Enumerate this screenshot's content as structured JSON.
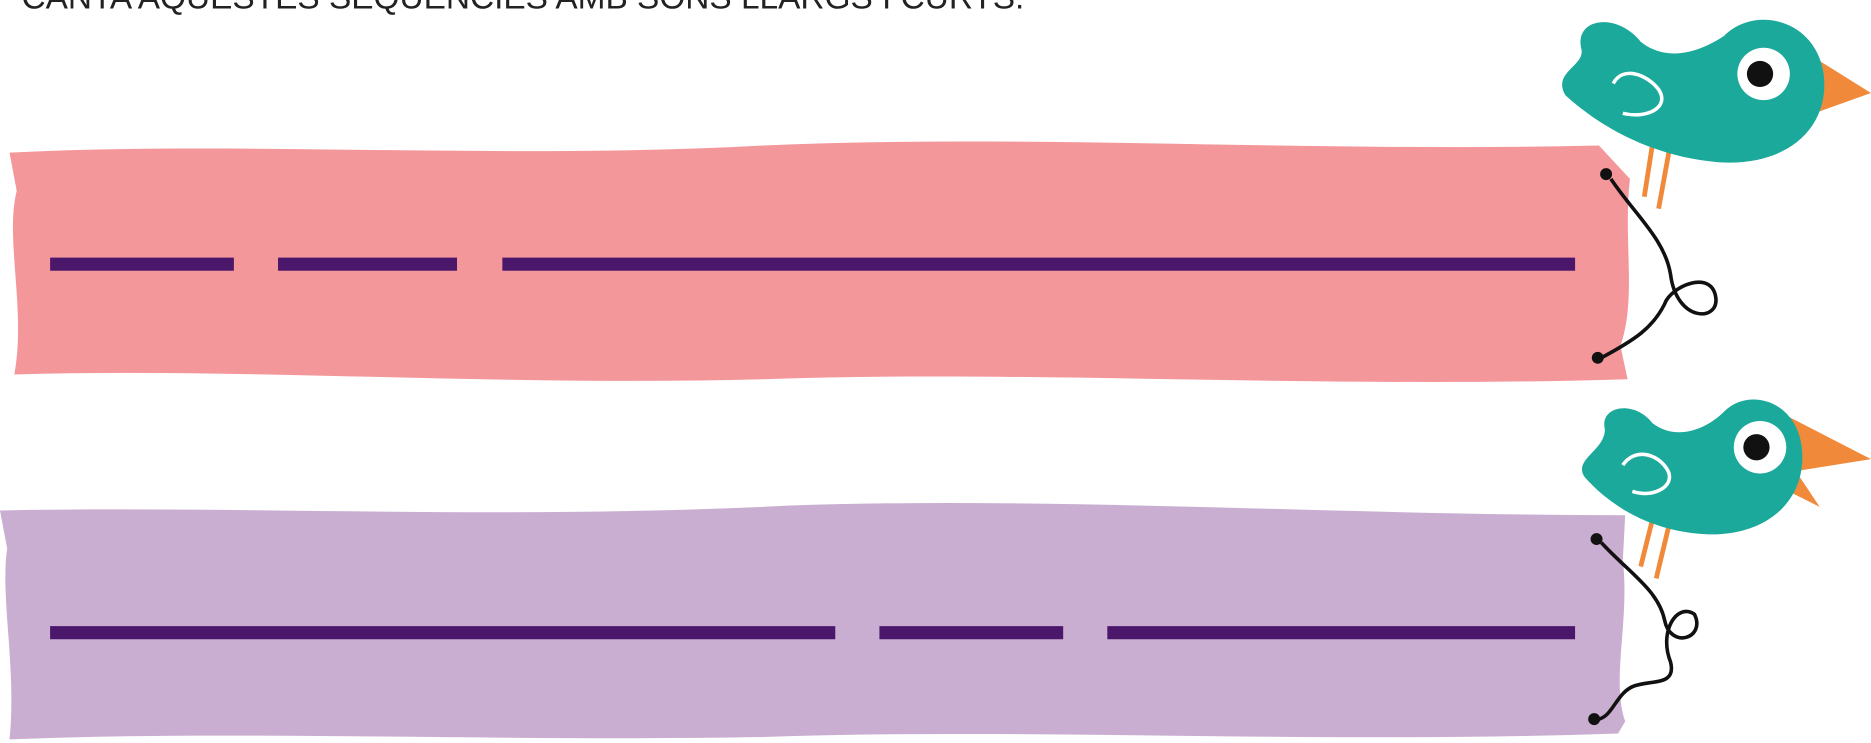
{
  "instruction": "CANTA AQUESTES SEQÜÈNCIES AMB SONS LLARGS I CURTS."
}
